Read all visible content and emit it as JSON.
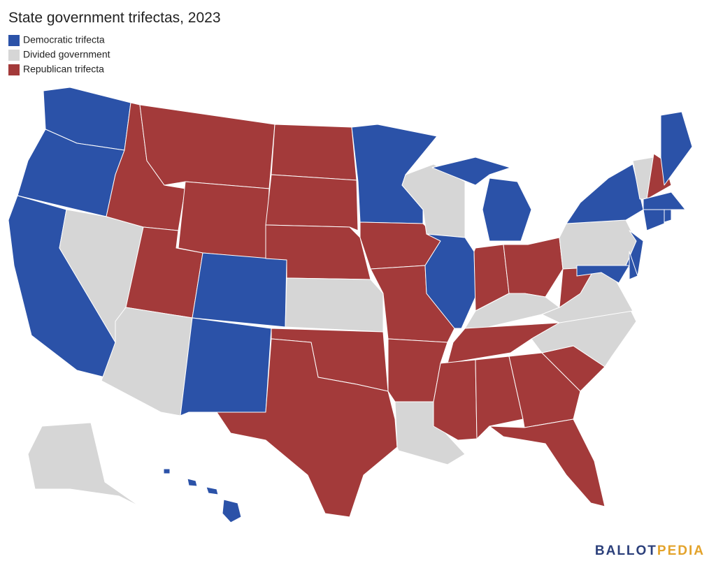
{
  "title": "State government trifectas, 2023",
  "legend": [
    {
      "label": "Democratic trifecta",
      "color": "#2b52a8"
    },
    {
      "label": "Divided government",
      "color": "#d6d6d6"
    },
    {
      "label": "Republican trifecta",
      "color": "#a33a3a"
    }
  ],
  "brand": {
    "part1": "BALLOT",
    "part1_color": "#2b3f7a",
    "part2": "PEDIA",
    "part2_color": "#e3a32b"
  }
}
